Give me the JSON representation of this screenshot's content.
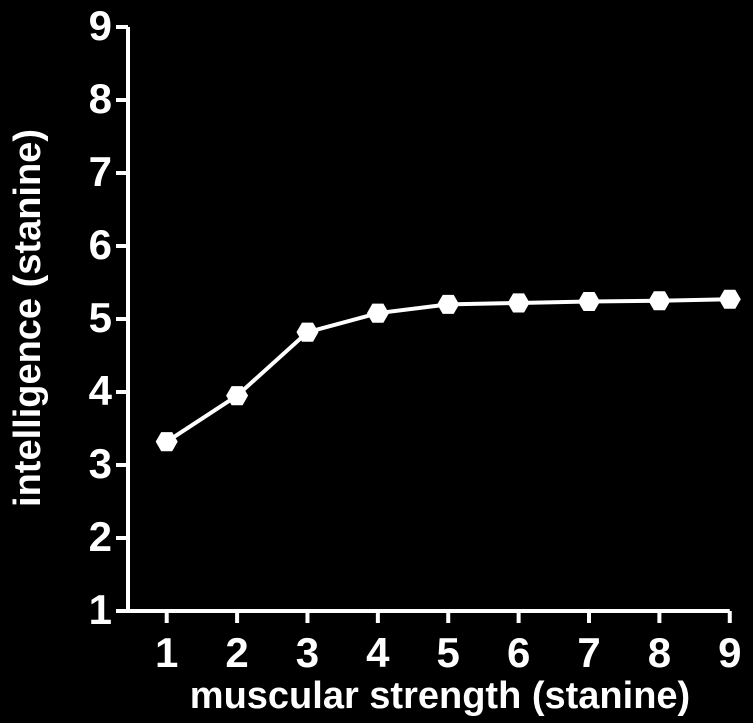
{
  "chart_data": {
    "type": "line",
    "x_label": "muscular strength (stanine)",
    "y_label": "intelligence (stanine)",
    "x": [
      1,
      2,
      3,
      4,
      5,
      6,
      7,
      8,
      9
    ],
    "series": [
      {
        "color": "#ffffff",
        "values": [
          3.32,
          3.95,
          4.82,
          5.08,
          5.2,
          5.22,
          5.24,
          5.25,
          5.27
        ]
      }
    ],
    "xlim": [
      0.45,
      9.33
    ],
    "ylim": [
      1,
      9
    ],
    "xticks": [
      1,
      2,
      3,
      4,
      5,
      6,
      7,
      8,
      9
    ],
    "yticks": [
      1,
      2,
      3,
      4,
      5,
      6,
      7,
      8,
      9
    ],
    "background": "#000000",
    "axis_color": "#ffffff"
  }
}
